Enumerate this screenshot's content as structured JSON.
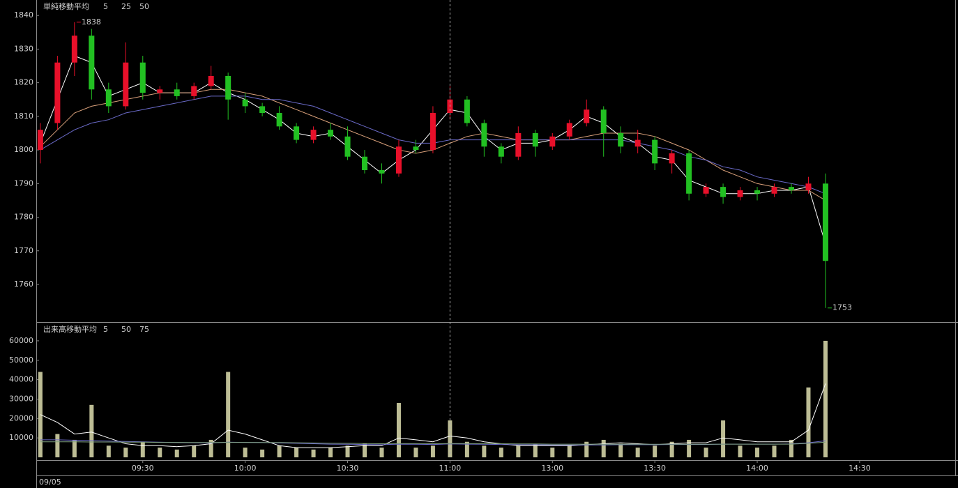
{
  "chart_data": [
    {
      "type": "candlestick",
      "title": "単純移動平均",
      "x": [
        0,
        5,
        10,
        15,
        20,
        25,
        30,
        35,
        40,
        45,
        50,
        55,
        60,
        65,
        70,
        75,
        80,
        85,
        90,
        95,
        100,
        105,
        110,
        115,
        120,
        125,
        130,
        135,
        140,
        145,
        150,
        155,
        160,
        165,
        170,
        175,
        180,
        185,
        190,
        195,
        200,
        205,
        210,
        215,
        220,
        225,
        230
      ],
      "open": [
        1800,
        1808,
        1826,
        1834,
        1818,
        1813,
        1826,
        1817,
        1818,
        1816,
        1819,
        1822,
        1815,
        1813,
        1811,
        1807,
        1803,
        1806,
        1804,
        1798,
        1794,
        1793,
        1801,
        1800,
        1811,
        1815,
        1808,
        1801,
        1798,
        1805,
        1801,
        1804,
        1808,
        1812,
        1805,
        1801,
        1803,
        1796,
        1799,
        1787,
        1789,
        1786,
        1788,
        1787,
        1789,
        1788,
        1790
      ],
      "high": [
        1808,
        1828,
        1838,
        1836,
        1820,
        1832,
        1828,
        1819,
        1820,
        1820,
        1825,
        1823,
        1817,
        1814,
        1813,
        1808,
        1807,
        1808,
        1807,
        1800,
        1796,
        1803,
        1803,
        1813,
        1819,
        1816,
        1809,
        1802,
        1807,
        1806,
        1805,
        1809,
        1815,
        1813,
        1807,
        1806,
        1804,
        1800,
        1800,
        1790,
        1790,
        1789,
        1789,
        1790,
        1790,
        1792,
        1793
      ],
      "low": [
        1796,
        1806,
        1822,
        1815,
        1811,
        1812,
        1815,
        1815,
        1815,
        1815,
        1818,
        1809,
        1811,
        1810,
        1806,
        1802,
        1802,
        1803,
        1797,
        1793,
        1790,
        1792,
        1799,
        1799,
        1809,
        1807,
        1798,
        1796,
        1797,
        1798,
        1800,
        1803,
        1807,
        1798,
        1799,
        1799,
        1794,
        1793,
        1785,
        1786,
        1784,
        1785,
        1785,
        1786,
        1787,
        1787,
        1753
      ],
      "close": [
        1806,
        1826,
        1834,
        1818,
        1813,
        1826,
        1817,
        1818,
        1816,
        1819,
        1822,
        1815,
        1813,
        1811,
        1807,
        1803,
        1806,
        1804,
        1798,
        1794,
        1793,
        1801,
        1800,
        1811,
        1815,
        1808,
        1801,
        1798,
        1805,
        1801,
        1804,
        1808,
        1812,
        1805,
        1801,
        1803,
        1796,
        1799,
        1787,
        1789,
        1786,
        1788,
        1787,
        1789,
        1788,
        1790,
        1767
      ],
      "up_color": "#e8102a",
      "down_color": "#22c022",
      "ma": [
        {
          "name": "5",
          "color": "#ffffff",
          "values": [
            1802,
            1815,
            1828,
            1826,
            1816,
            1818,
            1820,
            1817,
            1817,
            1817,
            1820,
            1817,
            1815,
            1812,
            1809,
            1805,
            1804,
            1805,
            1801,
            1797,
            1793,
            1797,
            1800,
            1806,
            1812,
            1811,
            1804,
            1800,
            1802,
            1802,
            1803,
            1806,
            1810,
            1808,
            1804,
            1802,
            1798,
            1797,
            1791,
            1789,
            1787,
            1787,
            1787,
            1788,
            1788,
            1789,
            1772
          ]
        },
        {
          "name": "25",
          "color": "#d9a07a",
          "values": [
            1801,
            1806,
            1811,
            1813,
            1814,
            1815,
            1816,
            1817,
            1817,
            1817,
            1818,
            1818,
            1817,
            1816,
            1814,
            1812,
            1810,
            1808,
            1806,
            1804,
            1802,
            1800,
            1799,
            1800,
            1802,
            1804,
            1805,
            1804,
            1803,
            1803,
            1803,
            1803,
            1804,
            1805,
            1805,
            1805,
            1804,
            1802,
            1800,
            1797,
            1794,
            1792,
            1790,
            1789,
            1788,
            1788,
            1785
          ]
        },
        {
          "name": "50",
          "color": "#6a6ac8",
          "values": [
            1800,
            1803,
            1806,
            1808,
            1809,
            1811,
            1812,
            1813,
            1814,
            1815,
            1816,
            1816,
            1816,
            1815,
            1815,
            1814,
            1813,
            1811,
            1809,
            1807,
            1805,
            1803,
            1802,
            1802,
            1803,
            1803,
            1803,
            1803,
            1803,
            1803,
            1803,
            1803,
            1803,
            1803,
            1803,
            1802,
            1801,
            1800,
            1798,
            1797,
            1795,
            1794,
            1792,
            1791,
            1790,
            1789,
            1787
          ]
        }
      ],
      "annotations": [
        {
          "x": 10,
          "value": 1838,
          "color": "#e8102a"
        },
        {
          "x": 230,
          "value": 1753,
          "color": "#22c022"
        }
      ],
      "xlim": [
        -1,
        268
      ],
      "ylim": [
        1748.8,
        1844.6
      ],
      "yticks": [
        1760,
        1770,
        1780,
        1790,
        1800,
        1810,
        1820,
        1830,
        1840
      ]
    },
    {
      "type": "bar",
      "title": "出来高移動平均",
      "x": [
        0,
        5,
        10,
        15,
        20,
        25,
        30,
        35,
        40,
        45,
        50,
        55,
        60,
        65,
        70,
        75,
        80,
        85,
        90,
        95,
        100,
        105,
        110,
        115,
        120,
        125,
        130,
        135,
        140,
        145,
        150,
        155,
        160,
        165,
        170,
        175,
        180,
        185,
        190,
        195,
        200,
        205,
        210,
        215,
        220,
        225,
        230
      ],
      "values": [
        44000,
        12000,
        9000,
        27000,
        6000,
        5000,
        8000,
        5000,
        4000,
        6000,
        9000,
        44000,
        5000,
        4000,
        6000,
        5000,
        4000,
        5000,
        6000,
        7000,
        5000,
        28000,
        5000,
        6000,
        19000,
        8000,
        6000,
        5000,
        6000,
        7000,
        5000,
        6000,
        8000,
        9000,
        7000,
        5000,
        6000,
        8000,
        9000,
        5000,
        19000,
        6000,
        5000,
        6000,
        9000,
        36000,
        60000
      ],
      "color": "#bdbd95",
      "ma": [
        {
          "name": "5",
          "color": "#ffffff",
          "values": [
            22000,
            18000,
            12000,
            13000,
            10000,
            7000,
            6000,
            6000,
            5500,
            6000,
            7000,
            14000,
            12000,
            9000,
            6000,
            5000,
            5000,
            5000,
            5500,
            6000,
            6000,
            10000,
            9000,
            8000,
            11000,
            10000,
            8000,
            7000,
            6000,
            6000,
            6000,
            6000,
            6500,
            7000,
            7500,
            7000,
            6500,
            7000,
            7500,
            7500,
            10000,
            9000,
            8000,
            8000,
            8000,
            14000,
            38000
          ]
        },
        {
          "name": "50",
          "color": "#6a6ac8",
          "values": [
            9000,
            9000,
            8800,
            8600,
            8400,
            8200,
            8000,
            7800,
            7600,
            7500,
            7400,
            7800,
            7700,
            7600,
            7400,
            7200,
            7000,
            6800,
            6700,
            6600,
            6500,
            6800,
            6700,
            6600,
            6900,
            6800,
            6700,
            6600,
            6500,
            6500,
            6400,
            6400,
            6400,
            6400,
            6500,
            6500,
            6500,
            6600,
            6600,
            6600,
            6800,
            6800,
            6800,
            6800,
            6900,
            7500,
            8500
          ]
        },
        {
          "name": "75",
          "color": "#7fa07f",
          "values": [
            8000,
            8000,
            8000,
            7900,
            7900,
            7800,
            7800,
            7700,
            7700,
            7600,
            7600,
            7700,
            7700,
            7600,
            7600,
            7500,
            7400,
            7300,
            7200,
            7100,
            7000,
            7100,
            7100,
            7000,
            7100,
            7100,
            7000,
            7000,
            6900,
            6900,
            6800,
            6800,
            6800,
            6700,
            6700,
            6700,
            6700,
            6700,
            6700,
            6700,
            6800,
            6800,
            6800,
            6800,
            6800,
            7200,
            7800
          ]
        }
      ],
      "xlim": [
        -1,
        268
      ],
      "ylim": [
        0,
        69300
      ],
      "yticks": [
        10000,
        20000,
        30000,
        40000,
        50000,
        60000
      ],
      "xticks": [
        {
          "value": 30,
          "label": "09:30"
        },
        {
          "value": 60,
          "label": "10:00"
        },
        {
          "value": 90,
          "label": "10:30"
        },
        {
          "value": 120,
          "label": "11:00"
        },
        {
          "value": 150,
          "label": "13:00"
        },
        {
          "value": 180,
          "label": "13:30"
        },
        {
          "value": 210,
          "label": "14:00"
        },
        {
          "value": 240,
          "label": "14:30"
        }
      ],
      "date": "09/05"
    }
  ]
}
